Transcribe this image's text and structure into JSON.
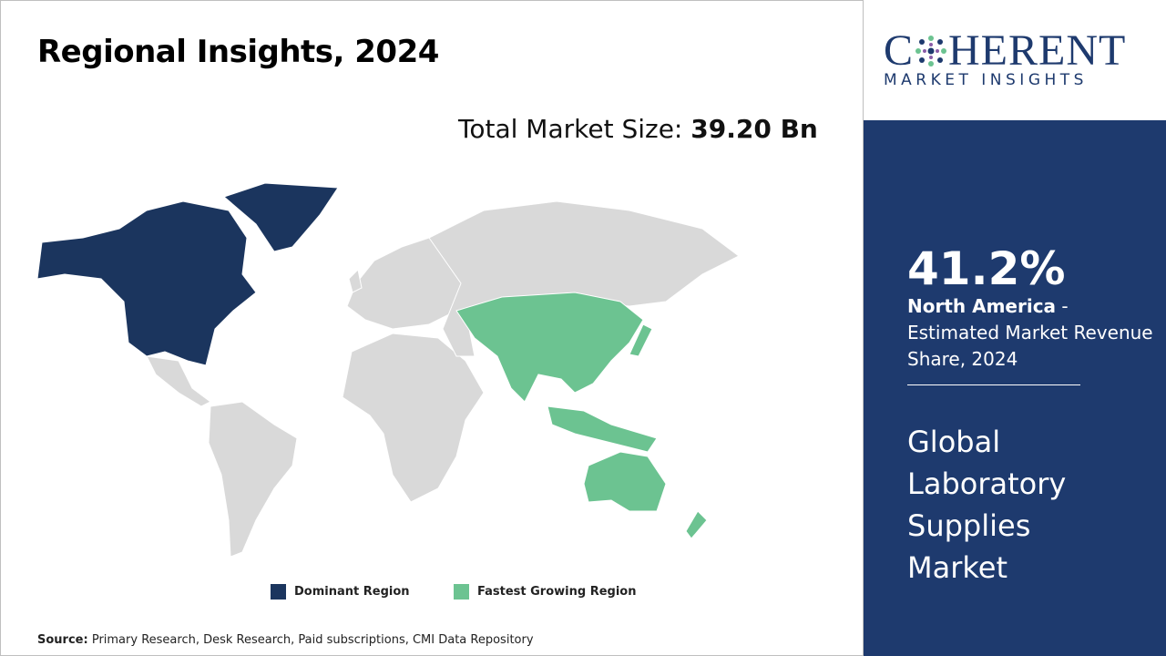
{
  "header": {
    "title": "Regional Insights, 2024",
    "market_size_label": "Total Market Size:",
    "market_size_value": "39.20 Bn"
  },
  "legend": {
    "dominant": "Dominant Region",
    "fastest": "Fastest Growing Region"
  },
  "source": {
    "label": "Source:",
    "text": "Primary Research, Desk Research, Paid subscriptions, CMI Data Repository"
  },
  "logo": {
    "name_start": "C",
    "name_end": "HERENT",
    "tagline": "MARKET INSIGHTS"
  },
  "panel": {
    "share": "41.2%",
    "region": "North America",
    "description": " - Estimated Market Revenue Share, 2024",
    "market": "Global Laboratory Supplies Market"
  }
}
